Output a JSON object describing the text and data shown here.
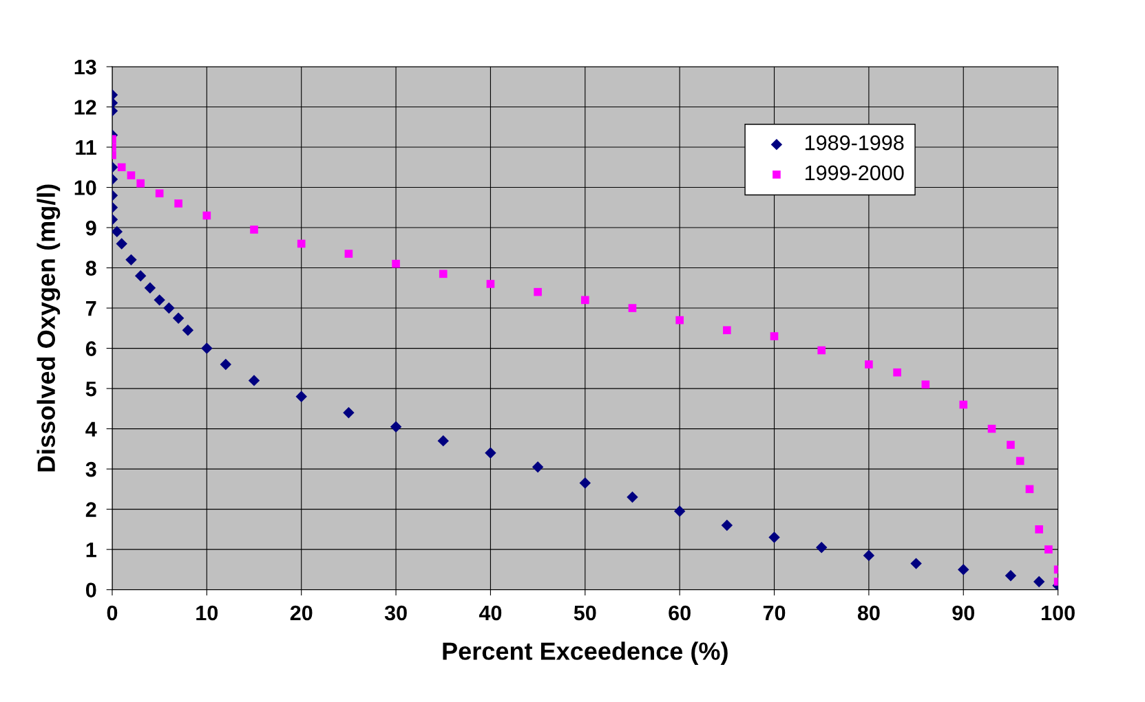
{
  "chart_data": {
    "type": "scatter",
    "xlabel": "Percent Exceedence (%)",
    "ylabel": "Dissolved Oxygen (mg/l)",
    "xlim": [
      0,
      100
    ],
    "xticks": [
      0,
      10,
      20,
      30,
      40,
      50,
      60,
      70,
      80,
      90,
      100
    ],
    "ylim": [
      0,
      13
    ],
    "yticks": [
      0,
      1,
      2,
      3,
      4,
      5,
      6,
      7,
      8,
      9,
      10,
      11,
      12,
      13
    ],
    "grid": true,
    "legend": "top right",
    "series": [
      {
        "name": "1989-1998",
        "color": "#000080",
        "marker": "diamond",
        "x": [
          0,
          0,
          0,
          0,
          0,
          0,
          0,
          0,
          0,
          0.5,
          1,
          2,
          3,
          4,
          5,
          6,
          7,
          8,
          10,
          12,
          15,
          20,
          25,
          30,
          35,
          40,
          45,
          50,
          55,
          60,
          65,
          70,
          75,
          80,
          85,
          90,
          95,
          98,
          100
        ],
        "values": [
          12.3,
          12.1,
          11.9,
          11.3,
          10.5,
          10.2,
          9.8,
          9.5,
          9.2,
          8.9,
          8.6,
          8.2,
          7.8,
          7.5,
          7.2,
          7.0,
          6.75,
          6.45,
          6.0,
          5.6,
          5.2,
          4.8,
          4.4,
          4.05,
          3.7,
          3.4,
          3.05,
          2.65,
          2.3,
          1.95,
          1.6,
          1.3,
          1.05,
          0.85,
          0.65,
          0.5,
          0.35,
          0.2,
          0.1
        ]
      },
      {
        "name": "1999-2000",
        "color": "#ff00ff",
        "marker": "square",
        "x": [
          0,
          0,
          0,
          1,
          2,
          3,
          5,
          7,
          10,
          15,
          20,
          25,
          30,
          35,
          40,
          45,
          50,
          55,
          60,
          65,
          70,
          75,
          80,
          83,
          86,
          90,
          93,
          95,
          96,
          97,
          98,
          99,
          100,
          100
        ],
        "values": [
          11.2,
          11.0,
          10.8,
          10.5,
          10.3,
          10.1,
          9.85,
          9.6,
          9.3,
          8.95,
          8.6,
          8.35,
          8.1,
          7.85,
          7.6,
          7.4,
          7.2,
          7.0,
          6.7,
          6.45,
          6.3,
          5.95,
          5.6,
          5.4,
          5.1,
          4.6,
          4.0,
          3.6,
          3.2,
          2.5,
          1.5,
          1.0,
          0.5,
          0.2
        ]
      }
    ]
  }
}
